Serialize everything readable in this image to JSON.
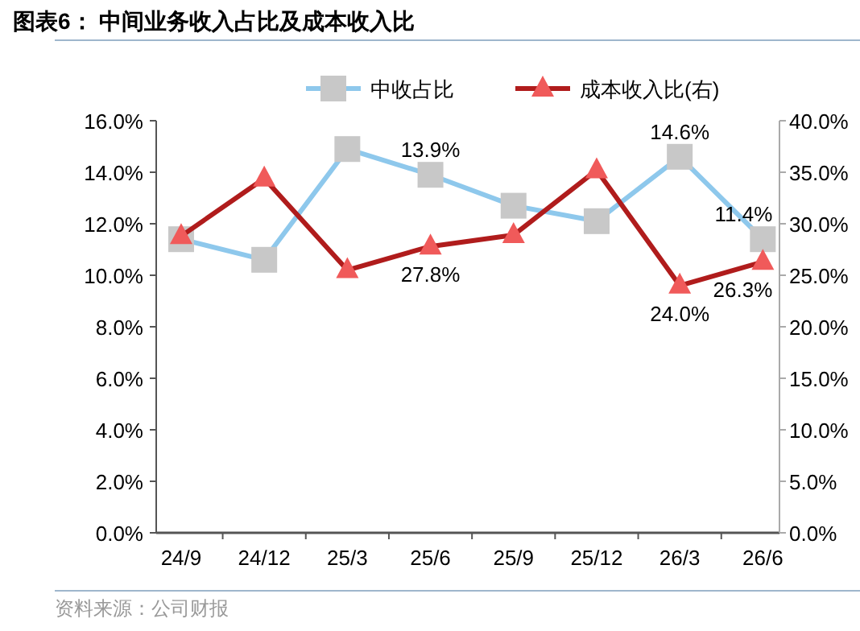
{
  "chart_data": {
    "type": "line",
    "title": "图表6：  中间业务收入占比及成本收入比",
    "categories": [
      "24/9",
      "24/12",
      "25/3",
      "25/6",
      "25/9",
      "25/12",
      "26/3",
      "26/6"
    ],
    "series": [
      {
        "name": "中收占比",
        "color": "#8ec8ec",
        "marker": "square",
        "values": [
          11.4,
          10.6,
          14.9,
          13.9,
          12.7,
          12.1,
          14.6,
          11.4
        ],
        "value_labels": [
          null,
          null,
          null,
          "13.9%",
          null,
          null,
          "14.6%",
          "11.4%"
        ]
      },
      {
        "name": "成本收入比(右)",
        "color": "#b01c1c",
        "marker": "triangle",
        "axis": "y2",
        "values": [
          28.8,
          34.4,
          25.5,
          27.8,
          28.9,
          35.2,
          24.0,
          26.3
        ],
        "value_labels": [
          null,
          null,
          null,
          "27.8%",
          null,
          null,
          "24.0%",
          "26.3%"
        ]
      }
    ],
    "ylim": [
      0,
      16
    ],
    "yticks": [
      {
        "value": 0,
        "label": "0.0%"
      },
      {
        "value": 2,
        "label": "2.0%"
      },
      {
        "value": 4,
        "label": "4.0%"
      },
      {
        "value": 6,
        "label": "6.0%"
      },
      {
        "value": 8,
        "label": "8.0%"
      },
      {
        "value": 10,
        "label": "10.0%"
      },
      {
        "value": 12,
        "label": "12.0%"
      },
      {
        "value": 14,
        "label": "14.0%"
      },
      {
        "value": 16,
        "label": "16.0%"
      }
    ],
    "y2lim": [
      0,
      40
    ],
    "y2ticks": [
      {
        "value": 0,
        "label": "0.0%"
      },
      {
        "value": 5,
        "label": "5.0%"
      },
      {
        "value": 10,
        "label": "10.0%"
      },
      {
        "value": 15,
        "label": "15.0%"
      },
      {
        "value": 20,
        "label": "20.0%"
      },
      {
        "value": 25,
        "label": "25.0%"
      },
      {
        "value": 30,
        "label": "30.0%"
      },
      {
        "value": 35,
        "label": "35.0%"
      },
      {
        "value": 40,
        "label": "40.0%"
      }
    ],
    "legend": "top",
    "grid": false,
    "annotations": [
      "资料来源：公司财报"
    ]
  }
}
